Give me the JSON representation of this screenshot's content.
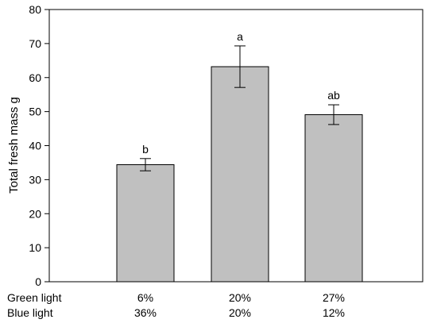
{
  "chart_data": {
    "type": "bar",
    "ylabel": "Total fresh mass g",
    "ylim": [
      0,
      80
    ],
    "yticks": [
      0,
      10,
      20,
      30,
      40,
      50,
      60,
      70,
      80
    ],
    "grid": false,
    "legend": "none",
    "categories": [
      {
        "green_light": "6%",
        "blue_light": "36%"
      },
      {
        "green_light": "20%",
        "blue_light": "20%"
      },
      {
        "green_light": "27%",
        "blue_light": "12%"
      }
    ],
    "row_labels": {
      "green_light": "Green light",
      "blue_light": "Blue light"
    },
    "values": [
      34.4,
      63.2,
      49.1
    ],
    "errors": [
      1.8,
      6.1,
      2.9
    ],
    "significance": [
      "b",
      "a",
      "ab"
    ],
    "bar_color": "#c0c0c0"
  }
}
